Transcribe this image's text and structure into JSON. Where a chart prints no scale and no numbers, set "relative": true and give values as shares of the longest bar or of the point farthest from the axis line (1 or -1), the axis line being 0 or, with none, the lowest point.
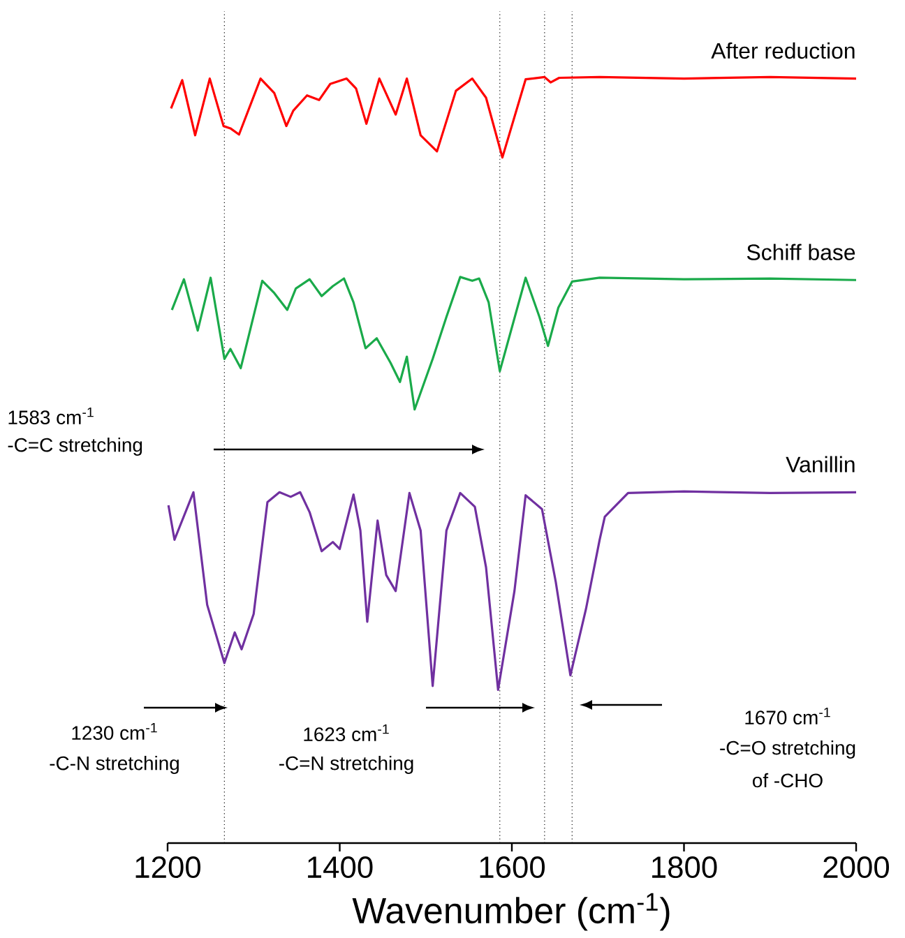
{
  "chart_data": {
    "type": "line",
    "relative": true,
    "xlabel": "Wavenumber (cm$^{-1}$)",
    "xlim": [
      1200,
      2000
    ],
    "xticks": [
      1200,
      1400,
      1600,
      1800,
      2000
    ],
    "marker": "none",
    "line_style": "solid",
    "legend": false,
    "grid": false,
    "series": [
      {
        "name": "After reduction",
        "color": "#ff0000",
        "x": [
          1204,
          1217,
          1232,
          1249,
          1265,
          1273,
          1283,
          1308,
          1324,
          1338,
          1346,
          1362,
          1376,
          1389,
          1408,
          1419,
          1431,
          1446,
          1465,
          1478,
          1494,
          1513,
          1535,
          1554,
          1570,
          1589,
          1616,
          1638,
          1645,
          1655,
          1702,
          1800,
          1900,
          2000
        ],
        "values": [
          0.959,
          0.996,
          0.924,
          0.998,
          0.936,
          0.933,
          0.925,
          0.998,
          0.979,
          0.936,
          0.956,
          0.976,
          0.97,
          0.991,
          0.998,
          0.985,
          0.939,
          0.998,
          0.951,
          0.998,
          0.924,
          0.903,
          0.982,
          0.998,
          0.973,
          0.895,
          0.997,
          1.0,
          0.993,
          0.999,
          1.0,
          0.998,
          1.0,
          0.998
        ]
      },
      {
        "name": "Schiff base",
        "color": "#1aaa4a",
        "x": [
          1205,
          1219,
          1235,
          1250,
          1266,
          1273,
          1285,
          1310,
          1324,
          1339,
          1349,
          1365,
          1379,
          1392,
          1405,
          1416,
          1430,
          1443,
          1459,
          1470,
          1478,
          1487,
          1508,
          1524,
          1540,
          1554,
          1562,
          1573,
          1586,
          1616,
          1632,
          1642,
          1654,
          1670,
          1702,
          1800,
          1900,
          2000
        ],
        "values": [
          0.696,
          0.736,
          0.669,
          0.738,
          0.632,
          0.645,
          0.62,
          0.734,
          0.718,
          0.696,
          0.724,
          0.736,
          0.714,
          0.727,
          0.737,
          0.706,
          0.646,
          0.659,
          0.627,
          0.602,
          0.635,
          0.566,
          0.632,
          0.687,
          0.739,
          0.734,
          0.737,
          0.706,
          0.616,
          0.738,
          0.687,
          0.649,
          0.699,
          0.733,
          0.738,
          0.736,
          0.737,
          0.735
        ]
      },
      {
        "name": "Vanillin",
        "color": "#7030a0",
        "x": [
          1201,
          1208,
          1230,
          1246,
          1266,
          1278,
          1286,
          1300,
          1316,
          1330,
          1343,
          1354,
          1365,
          1379,
          1392,
          1400,
          1416,
          1424,
          1432,
          1444,
          1454,
          1465,
          1481,
          1494,
          1508,
          1524,
          1540,
          1557,
          1570,
          1584,
          1603,
          1616,
          1635,
          1651,
          1668,
          1686,
          1702,
          1708,
          1735,
          1800,
          1900,
          2000
        ],
        "values": [
          0.441,
          0.396,
          0.458,
          0.311,
          0.235,
          0.275,
          0.253,
          0.299,
          0.445,
          0.458,
          0.452,
          0.458,
          0.432,
          0.381,
          0.393,
          0.384,
          0.455,
          0.408,
          0.289,
          0.421,
          0.35,
          0.329,
          0.457,
          0.408,
          0.205,
          0.408,
          0.457,
          0.439,
          0.36,
          0.2,
          0.329,
          0.454,
          0.436,
          0.341,
          0.219,
          0.305,
          0.396,
          0.426,
          0.457,
          0.459,
          0.457,
          0.458
        ]
      }
    ],
    "ref_lines": [
      {
        "axis": "x",
        "value": 1266,
        "line_style": "dotted",
        "color": "#000000"
      },
      {
        "axis": "x",
        "value": 1586,
        "line_style": "dotted",
        "color": "#000000"
      },
      {
        "axis": "x",
        "value": 1638,
        "line_style": "dotted",
        "color": "#000000"
      },
      {
        "axis": "x",
        "value": 1670,
        "line_style": "dotted",
        "color": "#000000"
      }
    ],
    "annotations": [
      "1583 cm$^{-1}$",
      "-C=C stretching",
      "1230 cm$^{-1}$",
      "-C-N stretching",
      "1623 cm$^{-1}$",
      "-C=N stretching",
      "1670 cm$^{-1}$",
      "-C=O stretching",
      "of -CHO"
    ]
  }
}
